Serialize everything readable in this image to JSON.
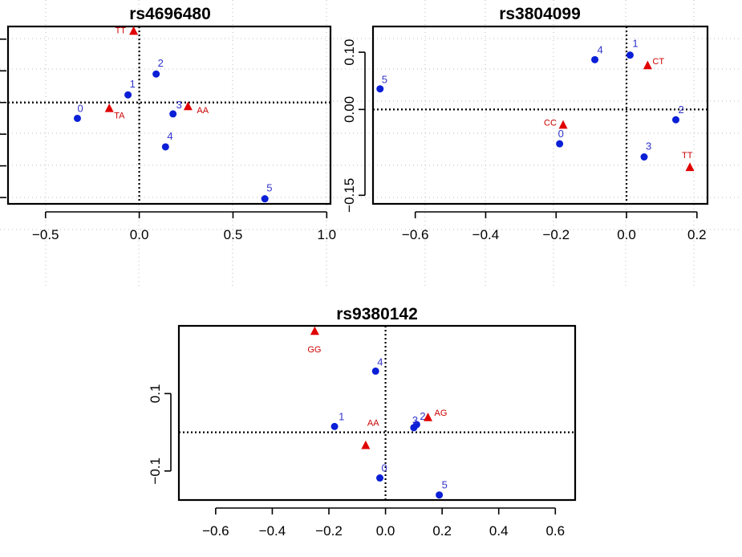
{
  "colors": {
    "point": "#0a1fd6",
    "genotype": "#e00000"
  },
  "chart_data": [
    {
      "type": "scatter",
      "title": "rs4696480",
      "xticks": [
        -0.5,
        0.0,
        0.5,
        1.0
      ],
      "xtick_labels": [
        "-0.5",
        "0.0",
        "0.5",
        "1.0"
      ],
      "yticks": [],
      "ytick_labels": [],
      "xlim": [
        -0.7,
        1.02
      ],
      "ylim": [
        -0.16,
        0.12
      ],
      "series": [
        {
          "marker": "circle",
          "color": "#0a1fd6",
          "points": [
            {
              "label": "0",
              "x": -0.33,
              "y": -0.025
            },
            {
              "label": "1",
              "x": -0.06,
              "y": 0.012
            },
            {
              "label": "2",
              "x": 0.09,
              "y": 0.045
            },
            {
              "label": "3",
              "x": 0.18,
              "y": -0.018
            },
            {
              "label": "4",
              "x": 0.14,
              "y": -0.07
            },
            {
              "label": "5",
              "x": 0.67,
              "y": -0.152
            }
          ]
        },
        {
          "marker": "triangle",
          "color": "#e00000",
          "points": [
            {
              "label": "TT",
              "x": -0.03,
              "y": 0.112
            },
            {
              "label": "TA",
              "x": -0.16,
              "y": -0.01
            },
            {
              "label": "AA",
              "x": 0.26,
              "y": -0.007
            }
          ]
        }
      ]
    },
    {
      "type": "scatter",
      "title": "rs3804099",
      "xticks": [
        -0.6,
        -0.4,
        -0.2,
        0.0,
        0.2
      ],
      "xtick_labels": [
        "-0.6",
        "-0.4",
        "-0.2",
        "0.0",
        "0.2"
      ],
      "yticks": [
        0.1,
        0.0,
        -0.15
      ],
      "ytick_labels": [
        "0.10",
        "0.00",
        "-0.15"
      ],
      "xlim": [
        -0.72,
        0.23
      ],
      "ylim": [
        -0.165,
        0.145
      ],
      "series": [
        {
          "marker": "circle",
          "color": "#0a1fd6",
          "points": [
            {
              "label": "0",
              "x": -0.19,
              "y": -0.06
            },
            {
              "label": "1",
              "x": 0.01,
              "y": 0.095
            },
            {
              "label": "2",
              "x": 0.14,
              "y": -0.018
            },
            {
              "label": "3",
              "x": 0.05,
              "y": -0.083
            },
            {
              "label": "4",
              "x": -0.09,
              "y": 0.087
            },
            {
              "label": "5",
              "x": -0.7,
              "y": 0.036
            }
          ]
        },
        {
          "marker": "triangle",
          "color": "#e00000",
          "points": [
            {
              "label": "CC",
              "x": -0.18,
              "y": -0.028
            },
            {
              "label": "CT",
              "x": 0.06,
              "y": 0.076
            },
            {
              "label": "TT",
              "x": 0.18,
              "y": -0.102
            }
          ]
        }
      ]
    },
    {
      "type": "scatter",
      "title": "rs9380142",
      "xticks": [
        -0.6,
        -0.4,
        -0.2,
        0.0,
        0.2,
        0.4,
        0.6
      ],
      "xtick_labels": [
        "-0.6",
        "-0.4",
        "-0.2",
        "0.0",
        "0.2",
        "0.4",
        "0.6"
      ],
      "yticks": [
        0.1,
        -0.1
      ],
      "ytick_labels": [
        "0.1",
        "-0.1"
      ],
      "xlim": [
        -0.73,
        0.67
      ],
      "ylim": [
        -0.175,
        0.275
      ],
      "series": [
        {
          "marker": "circle",
          "color": "#0a1fd6",
          "points": [
            {
              "label": "0",
              "x": -0.02,
              "y": -0.118
            },
            {
              "label": "1",
              "x": -0.18,
              "y": 0.015
            },
            {
              "label": "2",
              "x": 0.11,
              "y": 0.02
            },
            {
              "label": "3",
              "x": 0.1,
              "y": 0.012
            },
            {
              "label": "4",
              "x": -0.035,
              "y": 0.158
            },
            {
              "label": "5",
              "x": 0.19,
              "y": -0.162
            }
          ]
        },
        {
          "marker": "triangle",
          "color": "#e00000",
          "points": [
            {
              "label": "GG",
              "x": -0.25,
              "y": 0.26
            },
            {
              "label": "AA",
              "x": -0.07,
              "y": -0.035
            },
            {
              "label": "AG",
              "x": 0.15,
              "y": 0.037
            }
          ]
        }
      ]
    }
  ]
}
